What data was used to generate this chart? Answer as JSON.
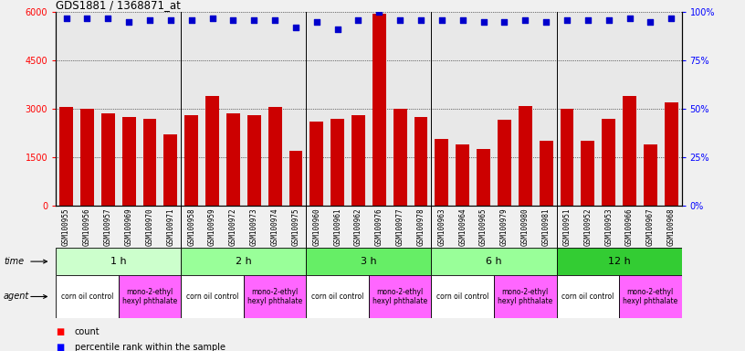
{
  "title": "GDS1881 / 1368871_at",
  "samples": [
    "GSM100955",
    "GSM100956",
    "GSM100957",
    "GSM100969",
    "GSM100970",
    "GSM100971",
    "GSM100958",
    "GSM100959",
    "GSM100972",
    "GSM100973",
    "GSM100974",
    "GSM100975",
    "GSM100960",
    "GSM100961",
    "GSM100962",
    "GSM100976",
    "GSM100977",
    "GSM100978",
    "GSM100963",
    "GSM100964",
    "GSM100965",
    "GSM100979",
    "GSM100980",
    "GSM100981",
    "GSM100951",
    "GSM100952",
    "GSM100953",
    "GSM100966",
    "GSM100967",
    "GSM100968"
  ],
  "counts": [
    3050,
    3000,
    2850,
    2750,
    2700,
    2200,
    2800,
    3400,
    2850,
    2800,
    3050,
    1700,
    2600,
    2700,
    2800,
    5950,
    3000,
    2750,
    2050,
    1900,
    1750,
    2650,
    3100,
    2000,
    3000,
    2000,
    2700,
    3400,
    1900,
    3200
  ],
  "percentiles": [
    97,
    97,
    97,
    95,
    96,
    96,
    96,
    97,
    96,
    96,
    96,
    92,
    95,
    91,
    96,
    100,
    96,
    96,
    96,
    96,
    95,
    95,
    96,
    95,
    96,
    96,
    96,
    97,
    95,
    97
  ],
  "time_groups": [
    {
      "label": "1 h",
      "start": 0,
      "end": 6,
      "color": "#ccffcc"
    },
    {
      "label": "2 h",
      "start": 6,
      "end": 12,
      "color": "#99ff99"
    },
    {
      "label": "3 h",
      "start": 12,
      "end": 18,
      "color": "#66ee66"
    },
    {
      "label": "6 h",
      "start": 18,
      "end": 24,
      "color": "#99ff99"
    },
    {
      "label": "12 h",
      "start": 24,
      "end": 30,
      "color": "#33cc33"
    }
  ],
  "agent_groups": [
    {
      "label": "corn oil control",
      "start": 0,
      "end": 3,
      "color": "#ffffff"
    },
    {
      "label": "mono-2-ethyl\nhexyl phthalate",
      "start": 3,
      "end": 6,
      "color": "#ff66ff"
    },
    {
      "label": "corn oil control",
      "start": 6,
      "end": 9,
      "color": "#ffffff"
    },
    {
      "label": "mono-2-ethyl\nhexyl phthalate",
      "start": 9,
      "end": 12,
      "color": "#ff66ff"
    },
    {
      "label": "corn oil control",
      "start": 12,
      "end": 15,
      "color": "#ffffff"
    },
    {
      "label": "mono-2-ethyl\nhexyl phthalate",
      "start": 15,
      "end": 18,
      "color": "#ff66ff"
    },
    {
      "label": "corn oil control",
      "start": 18,
      "end": 21,
      "color": "#ffffff"
    },
    {
      "label": "mono-2-ethyl\nhexyl phthalate",
      "start": 21,
      "end": 24,
      "color": "#ff66ff"
    },
    {
      "label": "corn oil control",
      "start": 24,
      "end": 27,
      "color": "#ffffff"
    },
    {
      "label": "mono-2-ethyl\nhexyl phthalate",
      "start": 27,
      "end": 30,
      "color": "#ff66ff"
    }
  ],
  "bar_color": "#cc0000",
  "dot_color": "#0000cc",
  "ylim_left": [
    0,
    6000
  ],
  "ylim_right": [
    0,
    100
  ],
  "yticks_left": [
    0,
    1500,
    3000,
    4500,
    6000
  ],
  "yticks_right": [
    0,
    25,
    50,
    75,
    100
  ],
  "fig_bg": "#f0f0f0",
  "plot_bg": "#e8e8e8"
}
